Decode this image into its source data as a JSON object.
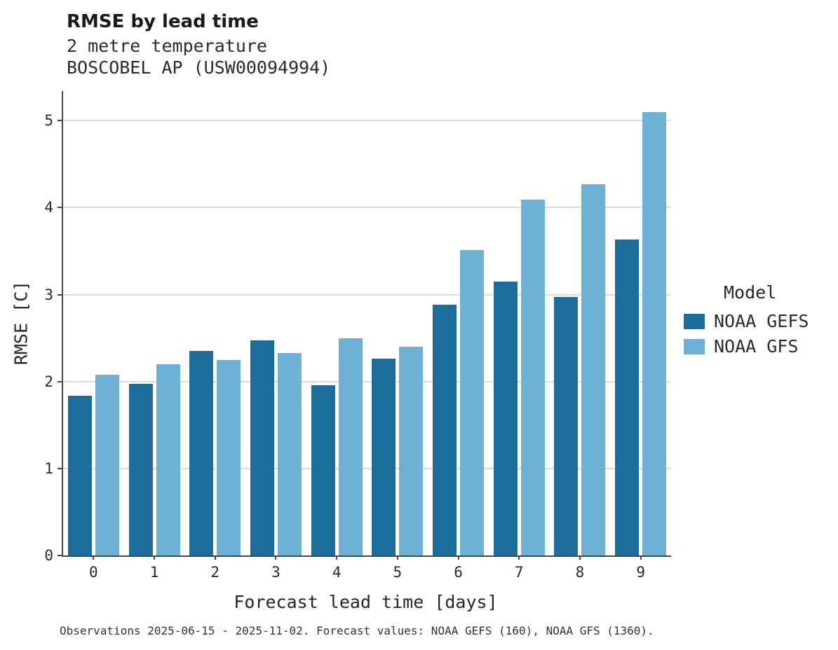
{
  "title": "RMSE by lead time",
  "subtitle": [
    "2 metre temperature",
    "BOSCOBEL AP (USW00094994)"
  ],
  "caption": "Observations 2025-06-15 - 2025-11-02. Forecast values: NOAA GEFS (160), NOAA GFS (1360).",
  "legend": {
    "title": "Model",
    "entries": [
      {
        "label": "NOAA GEFS",
        "color": "#1d6d9a"
      },
      {
        "label": "NOAA GFS",
        "color": "#6fb0d6"
      }
    ]
  },
  "chart_data": {
    "type": "bar",
    "title": "RMSE by lead time",
    "subtitle": "2 metre temperature — BOSCOBEL AP (USW00094994)",
    "xlabel": "Forecast lead time [days]",
    "ylabel": "RMSE [C]",
    "categories": [
      0,
      1,
      2,
      3,
      4,
      5,
      6,
      7,
      8,
      9
    ],
    "series": [
      {
        "name": "NOAA GEFS",
        "color": "#1d6d9a",
        "values": [
          1.84,
          1.97,
          2.35,
          2.47,
          1.96,
          2.26,
          2.88,
          3.15,
          2.97,
          3.63
        ]
      },
      {
        "name": "NOAA GFS",
        "color": "#6fb0d6",
        "values": [
          2.08,
          2.2,
          2.25,
          2.33,
          2.5,
          2.4,
          3.51,
          4.09,
          4.27,
          5.1
        ]
      }
    ],
    "ylim": [
      0,
      5.34
    ],
    "yticks": [
      0,
      1,
      2,
      3,
      4,
      5
    ],
    "grid": true,
    "legend_position": "right"
  }
}
